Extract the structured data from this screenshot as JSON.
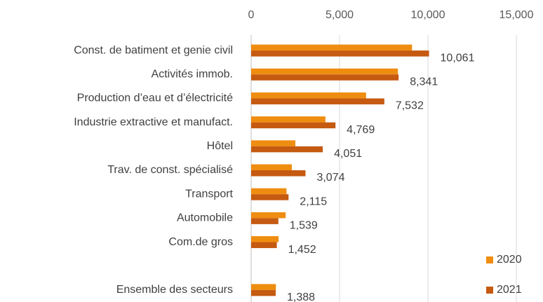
{
  "chart_data": {
    "type": "hbar",
    "categories": [
      "Const. de batiment et genie civil",
      "Activités immob.",
      "Production d’eau et d’électricité",
      "Industrie extractive et manufact.",
      "Hôtel",
      "Trav. de const. spécialisé",
      "Transport",
      "Automobile",
      "Com.de gros",
      null,
      "Ensemble des secteurs"
    ],
    "series": [
      {
        "name": "2020",
        "color": "#ef8d10",
        "values": [
          9100,
          8300,
          6500,
          4200,
          2500,
          2300,
          2000,
          1950,
          1550,
          null,
          1400
        ]
      },
      {
        "name": "2021",
        "color": "#c55a11",
        "values": [
          10061,
          8341,
          7532,
          4769,
          4051,
          3074,
          2115,
          1539,
          1452,
          null,
          1388
        ],
        "value_labels": [
          "10,061",
          "8,341",
          "7,532",
          "4,769",
          "4,051",
          "3,074",
          "2,115",
          "1,539",
          "1,452",
          null,
          "1,388"
        ]
      }
    ],
    "xlim": [
      0,
      15000
    ],
    "xticks": [
      0,
      {
        "value": 5000,
        "label": "5,000"
      },
      {
        "value": 10000,
        "label": "10,000"
      },
      {
        "value": 15000,
        "label": "15,000"
      }
    ],
    "grid": true,
    "legend": "lower right"
  }
}
